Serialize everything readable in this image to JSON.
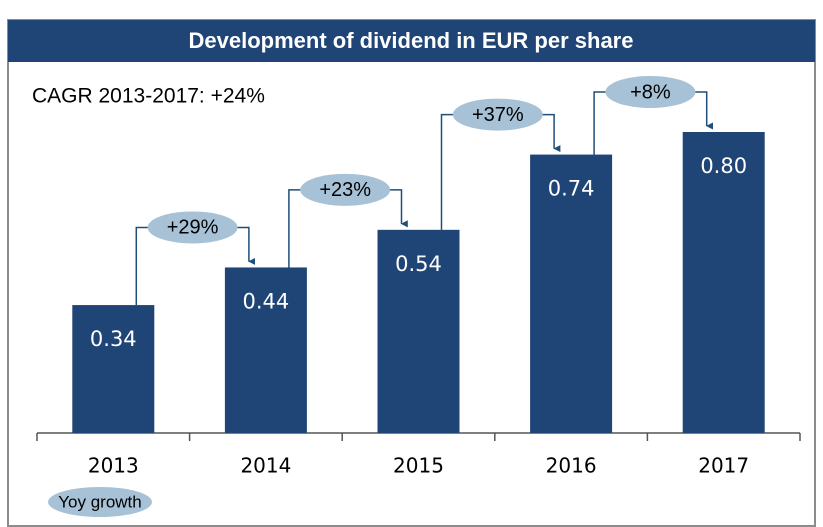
{
  "chart_data": {
    "type": "bar",
    "title": "Development of dividend in EUR per share",
    "subtitle": "CAGR 2013-2017: +24%",
    "categories": [
      "2013",
      "2014",
      "2015",
      "2016",
      "2017"
    ],
    "values": [
      0.34,
      0.44,
      0.54,
      0.74,
      0.8
    ],
    "value_labels": [
      "0.34",
      "0.44",
      "0.54",
      "0.74",
      "0.80"
    ],
    "color": "#1f4577",
    "growth_labels": [
      "+29%",
      "+23%",
      "+37%",
      "+8%"
    ],
    "legend": "Yoy growth"
  }
}
